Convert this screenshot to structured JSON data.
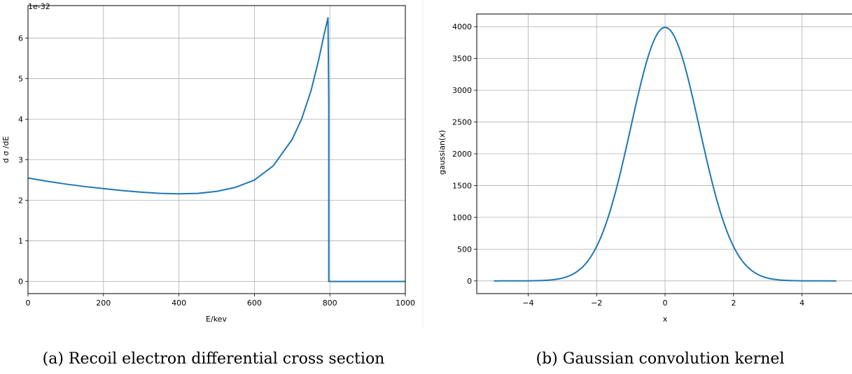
{
  "chart_data": [
    {
      "type": "line",
      "panel_caption": "(a) Recoil electron differential cross section",
      "xlabel": "E/kev",
      "ylabel": "d σ /dE",
      "y_offset_text": "1e-32",
      "xlim": [
        0,
        1000
      ],
      "ylim": [
        -0.3,
        6.8
      ],
      "x_ticks": [
        0,
        200,
        400,
        600,
        800,
        1000
      ],
      "y_ticks": [
        0,
        1,
        2,
        3,
        4,
        5,
        6
      ],
      "grid": true,
      "series": [
        {
          "color": "#1f77b4",
          "x": [
            0,
            50,
            100,
            150,
            200,
            250,
            300,
            350,
            400,
            450,
            500,
            550,
            600,
            650,
            700,
            725,
            750,
            770,
            785,
            795,
            797,
            797,
            800,
            1000
          ],
          "y": [
            2.55,
            2.47,
            2.4,
            2.34,
            2.29,
            2.24,
            2.2,
            2.17,
            2.16,
            2.17,
            2.22,
            2.32,
            2.5,
            2.85,
            3.5,
            4.0,
            4.7,
            5.45,
            6.1,
            6.5,
            4.5,
            0,
            0,
            0
          ]
        }
      ]
    },
    {
      "type": "line",
      "panel_caption": "(b) Gaussian convolution kernel",
      "xlabel": "x",
      "ylabel": "gaussian(x)",
      "xlim": [
        -5.5,
        5.5
      ],
      "ylim": [
        -200,
        4200
      ],
      "x_ticks": [
        -4,
        -2,
        0,
        2,
        4
      ],
      "y_ticks": [
        0,
        500,
        1000,
        1500,
        2000,
        2500,
        3000,
        3500,
        4000
      ],
      "grid": true,
      "series": [
        {
          "color": "#1f77b4",
          "function": "3989.4 * exp(-x^2 / 2)",
          "x_range": [
            -5,
            5
          ]
        }
      ]
    }
  ]
}
